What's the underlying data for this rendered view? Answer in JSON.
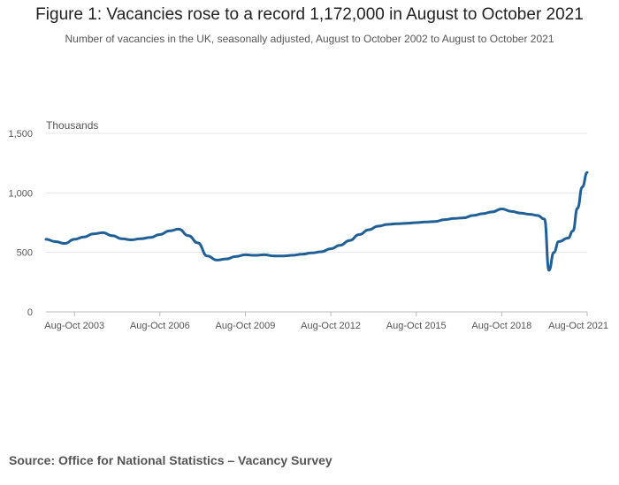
{
  "title": "Figure 1: Vacancies rose to a record 1,172,000 in August to October 2021",
  "subtitle": "Number of vacancies in the UK, seasonally adjusted, August to October 2002 to August to October 2021",
  "source": "Source: Office for National Statistics – Vacancy Survey",
  "colors": {
    "line": "#206095",
    "grid": "#e6e6e6",
    "axis": "#bbbbbb"
  },
  "chart_data": {
    "type": "line",
    "title": "Figure 1: Vacancies rose to a record 1,172,000 in August to October 2021",
    "ylabel": "Thousands",
    "xlabel": "",
    "ylim": [
      0,
      1500
    ],
    "yticks": [
      0,
      500,
      1000,
      1500
    ],
    "ytick_labels": [
      "0",
      "500",
      "1,000",
      "1,500"
    ],
    "xlim": [
      2002.67,
      2021.67
    ],
    "xticks": [
      2003.67,
      2006.67,
      2009.67,
      2012.67,
      2015.67,
      2018.67,
      2021.67
    ],
    "xtick_labels": [
      "Aug-Oct 2003",
      "Aug-Oct 2006",
      "Aug-Oct 2009",
      "Aug-Oct 2012",
      "Aug-Oct 2015",
      "Aug-Oct 2018",
      "Aug-Oct 2021"
    ],
    "grid": true,
    "series": [
      {
        "x": [
          2002.67,
          2003.0,
          2003.33,
          2003.67,
          2004.0,
          2004.33,
          2004.67,
          2005.0,
          2005.33,
          2005.67,
          2006.0,
          2006.33,
          2006.67,
          2007.0,
          2007.33,
          2007.67,
          2008.0,
          2008.33,
          2008.67,
          2009.0,
          2009.33,
          2009.67,
          2010.0,
          2010.33,
          2010.67,
          2011.0,
          2011.33,
          2011.67,
          2012.0,
          2012.33,
          2012.67,
          2013.0,
          2013.33,
          2013.67,
          2014.0,
          2014.33,
          2014.67,
          2015.0,
          2015.33,
          2015.67,
          2016.0,
          2016.33,
          2016.67,
          2017.0,
          2017.33,
          2017.67,
          2018.0,
          2018.33,
          2018.67,
          2019.0,
          2019.33,
          2019.67,
          2019.92,
          2020.17,
          2020.33,
          2020.5,
          2020.67,
          2021.0,
          2021.17,
          2021.33,
          2021.5,
          2021.67
        ],
        "values": [
          610,
          590,
          575,
          610,
          630,
          655,
          665,
          640,
          615,
          605,
          615,
          625,
          650,
          680,
          695,
          640,
          580,
          470,
          435,
          445,
          465,
          480,
          475,
          480,
          470,
          470,
          475,
          485,
          495,
          505,
          530,
          560,
          600,
          650,
          690,
          720,
          735,
          740,
          745,
          750,
          755,
          760,
          775,
          785,
          790,
          810,
          825,
          840,
          865,
          845,
          830,
          820,
          810,
          780,
          350,
          500,
          590,
          620,
          680,
          870,
          1050,
          1172
        ]
      }
    ]
  }
}
